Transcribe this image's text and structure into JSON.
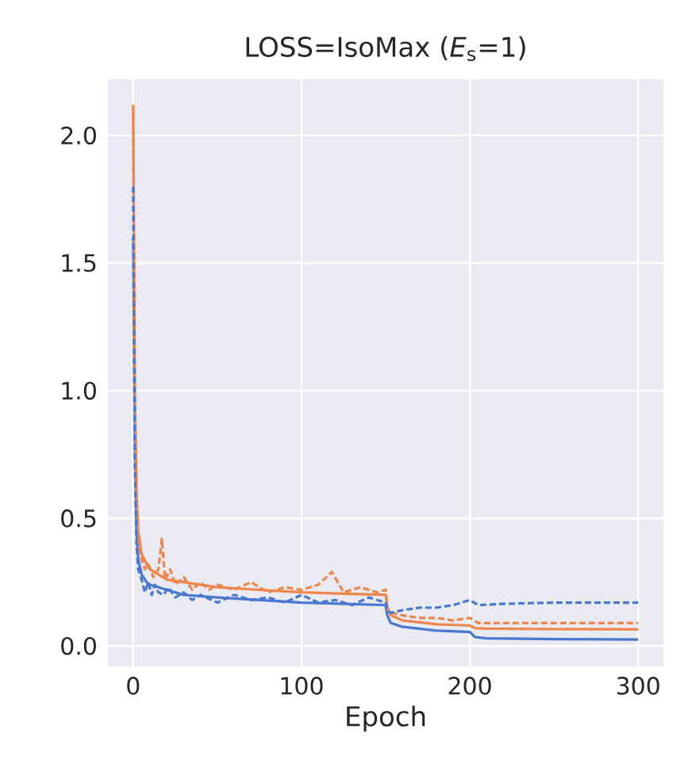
{
  "chart_data": {
    "type": "line",
    "title": "LOSS=IsoMax (*E*$_{s}$=1)",
    "xlabel": "Epoch",
    "xlim": [
      -15,
      315
    ],
    "ylim": [
      -0.08,
      2.22
    ],
    "xticks": [
      0,
      100,
      200,
      300
    ],
    "yticks": [
      {
        "value": 0,
        "label": "0.0"
      },
      {
        "value": 0.5,
        "label": "0.5"
      },
      {
        "value": 1,
        "label": "1.0"
      },
      {
        "value": 1.5,
        "label": "1.5"
      },
      {
        "value": 2,
        "label": "2.0"
      }
    ],
    "grid": true,
    "legend": false,
    "marker": "none",
    "series": [
      {
        "color": "#4878d0",
        "line_style": "solid",
        "x": [
          0,
          1,
          2,
          3,
          5,
          8,
          10,
          15,
          20,
          30,
          50,
          75,
          100,
          125,
          150,
          151,
          153,
          160,
          180,
          200,
          203,
          210,
          250,
          300
        ],
        "values": [
          1.6,
          0.8,
          0.45,
          0.34,
          0.28,
          0.25,
          0.24,
          0.23,
          0.22,
          0.2,
          0.19,
          0.18,
          0.17,
          0.165,
          0.16,
          0.12,
          0.09,
          0.075,
          0.06,
          0.055,
          0.035,
          0.03,
          0.027,
          0.025
        ]
      },
      {
        "color": "#ee854a",
        "line_style": "solid",
        "x": [
          0,
          1,
          2,
          3,
          5,
          8,
          10,
          15,
          20,
          30,
          50,
          75,
          100,
          125,
          150,
          151,
          153,
          160,
          180,
          200,
          203,
          210,
          250,
          300
        ],
        "values": [
          2.12,
          1.0,
          0.6,
          0.45,
          0.36,
          0.32,
          0.3,
          0.28,
          0.26,
          0.25,
          0.23,
          0.22,
          0.21,
          0.205,
          0.2,
          0.15,
          0.12,
          0.1,
          0.085,
          0.08,
          0.07,
          0.068,
          0.066,
          0.065
        ]
      },
      {
        "color": "#ee854a",
        "line_style": "dashed",
        "x": [
          0,
          1,
          2,
          3,
          5,
          7,
          9,
          12,
          15,
          17,
          19,
          22,
          25,
          30,
          35,
          40,
          45,
          50,
          60,
          70,
          80,
          90,
          100,
          110,
          118,
          125,
          135,
          145,
          150,
          151,
          153,
          160,
          170,
          180,
          190,
          200,
          205,
          220,
          250,
          300
        ],
        "values": [
          2.1,
          0.9,
          0.5,
          0.4,
          0.34,
          0.3,
          0.32,
          0.27,
          0.3,
          0.42,
          0.26,
          0.3,
          0.24,
          0.27,
          0.22,
          0.25,
          0.22,
          0.24,
          0.22,
          0.25,
          0.21,
          0.23,
          0.22,
          0.24,
          0.29,
          0.21,
          0.23,
          0.21,
          0.22,
          0.15,
          0.13,
          0.12,
          0.11,
          0.11,
          0.1,
          0.11,
          0.09,
          0.09,
          0.09,
          0.09
        ]
      },
      {
        "color": "#4878d0",
        "line_style": "dashed",
        "x": [
          0,
          1,
          2,
          3,
          5,
          7,
          9,
          11,
          13,
          15,
          18,
          21,
          25,
          30,
          35,
          40,
          50,
          60,
          70,
          80,
          90,
          100,
          110,
          120,
          130,
          140,
          150,
          151,
          153,
          160,
          170,
          180,
          190,
          200,
          205,
          220,
          250,
          300
        ],
        "values": [
          1.8,
          0.7,
          0.4,
          0.3,
          0.26,
          0.21,
          0.25,
          0.2,
          0.24,
          0.21,
          0.2,
          0.23,
          0.19,
          0.21,
          0.18,
          0.2,
          0.17,
          0.2,
          0.18,
          0.19,
          0.17,
          0.2,
          0.17,
          0.18,
          0.16,
          0.19,
          0.17,
          0.14,
          0.13,
          0.14,
          0.15,
          0.15,
          0.16,
          0.18,
          0.16,
          0.165,
          0.17,
          0.17
        ]
      }
    ]
  }
}
